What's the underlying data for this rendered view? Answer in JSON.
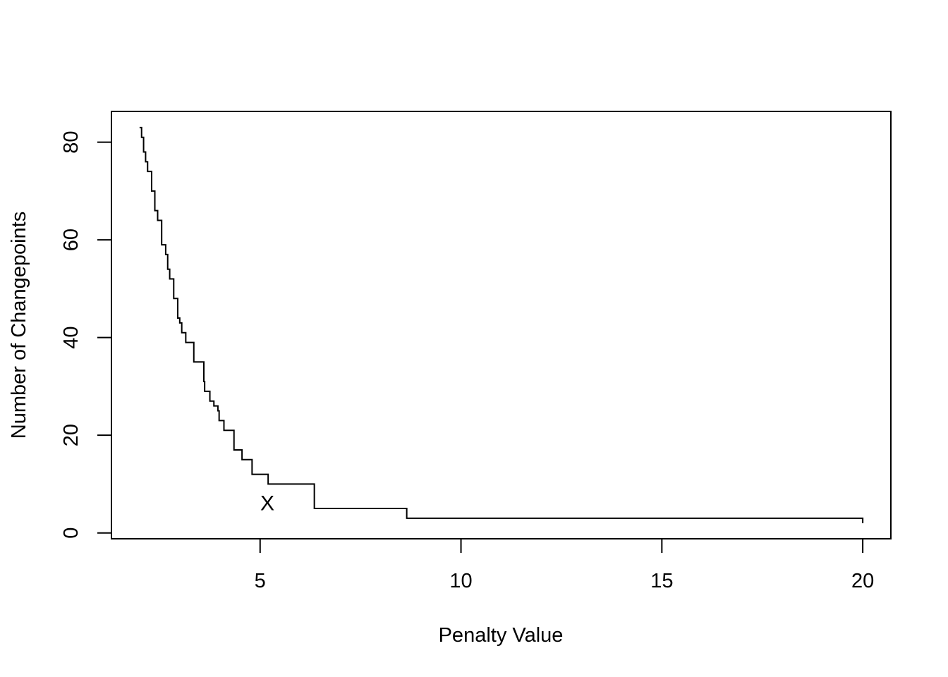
{
  "chart_data": {
    "type": "line",
    "step": true,
    "title": "",
    "xlabel": "Penalty Value",
    "ylabel": "Number of Changepoints",
    "xlim": [
      1.3,
      20.7
    ],
    "ylim": [
      -1.2,
      86.3
    ],
    "xticks": [
      5,
      10,
      15,
      20
    ],
    "yticks": [
      0,
      20,
      40,
      60,
      80
    ],
    "grid": false,
    "series": [
      {
        "x": [
          2.0,
          2.05,
          2.1,
          2.15,
          2.2,
          2.3,
          2.38,
          2.45,
          2.55,
          2.65,
          2.7,
          2.75,
          2.85,
          2.95,
          3.0,
          3.05,
          3.15,
          3.35,
          3.6,
          3.62,
          3.75,
          3.85,
          3.95,
          3.98,
          4.1,
          4.35,
          4.55,
          4.8,
          5.2,
          6.35,
          8.65,
          20.0
        ],
        "y": [
          83,
          81,
          78,
          76,
          74,
          70,
          66,
          64,
          59,
          57,
          54,
          52,
          48,
          44,
          43,
          41,
          39,
          35,
          31,
          29,
          27,
          26,
          25,
          23,
          21,
          17,
          15,
          12,
          10,
          5,
          3,
          2
        ]
      }
    ],
    "marker": {
      "symbol": "X",
      "x": 5.18,
      "y": 6
    }
  }
}
